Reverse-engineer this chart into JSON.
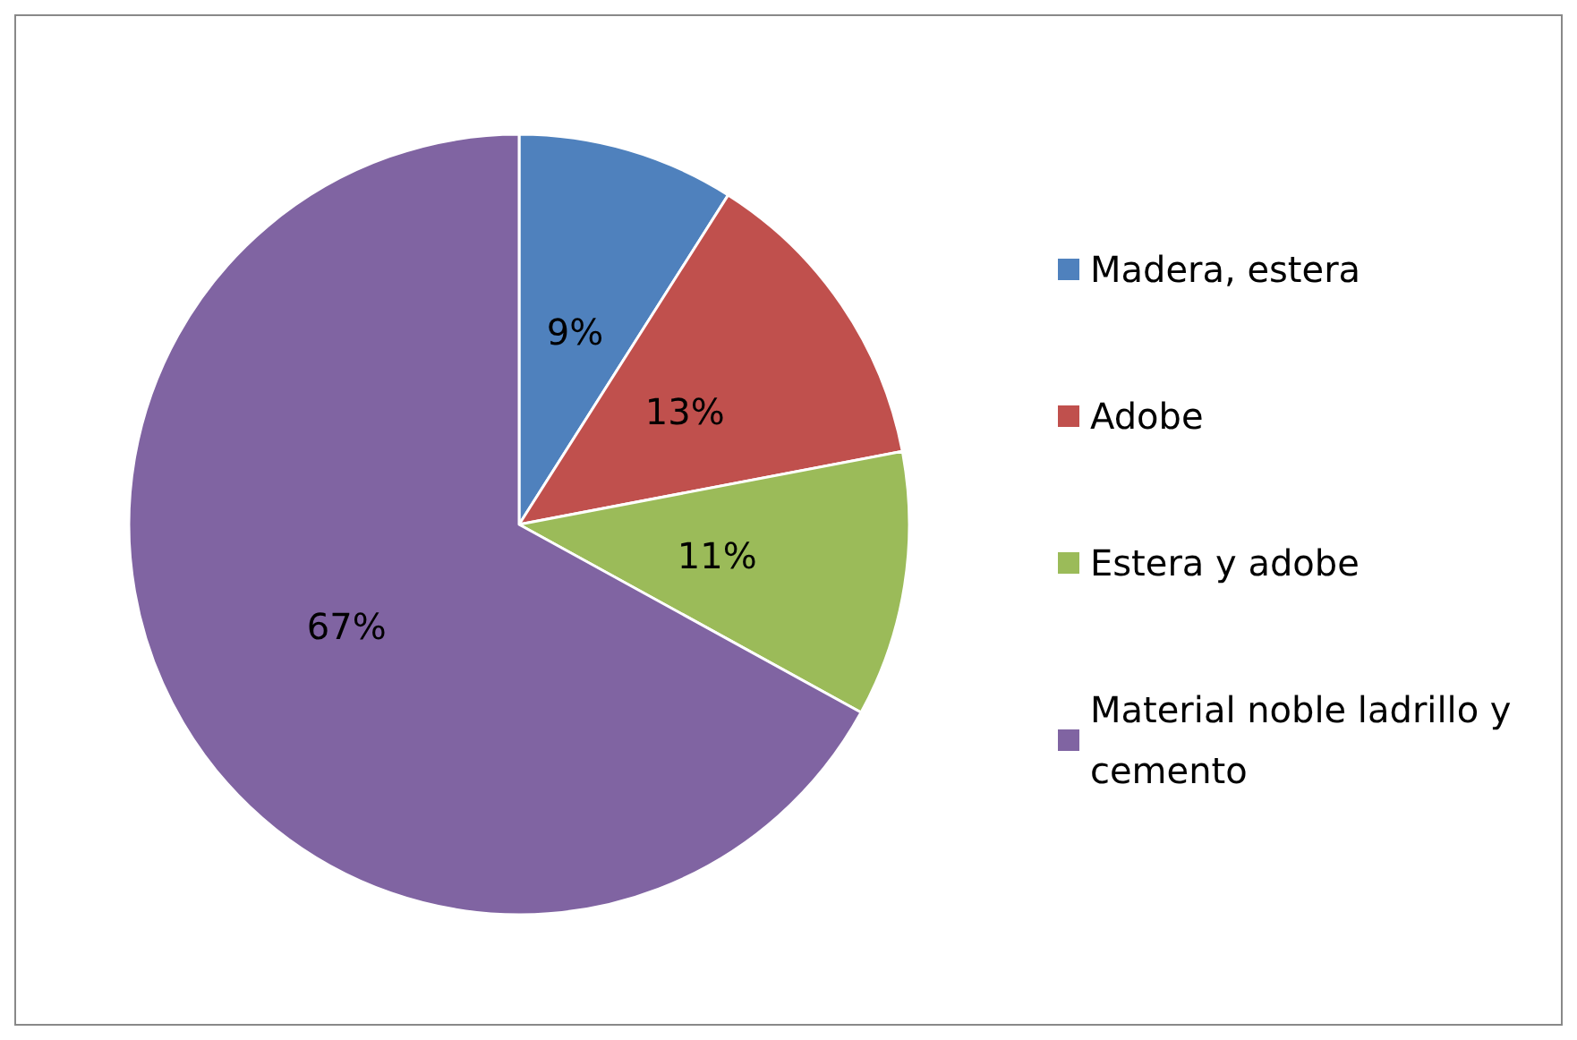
{
  "chart_data": {
    "type": "pie",
    "categories": [
      "Madera, estera",
      "Adobe",
      "Estera y adobe",
      "Material noble ladrillo y cemento"
    ],
    "values": [
      9,
      13,
      11,
      67
    ],
    "colors": [
      "#4f81bd",
      "#c0504d",
      "#9bbb59",
      "#8064a2"
    ],
    "value_labels": [
      "9%",
      "13%",
      "11%",
      "67%"
    ],
    "legend": "right"
  }
}
